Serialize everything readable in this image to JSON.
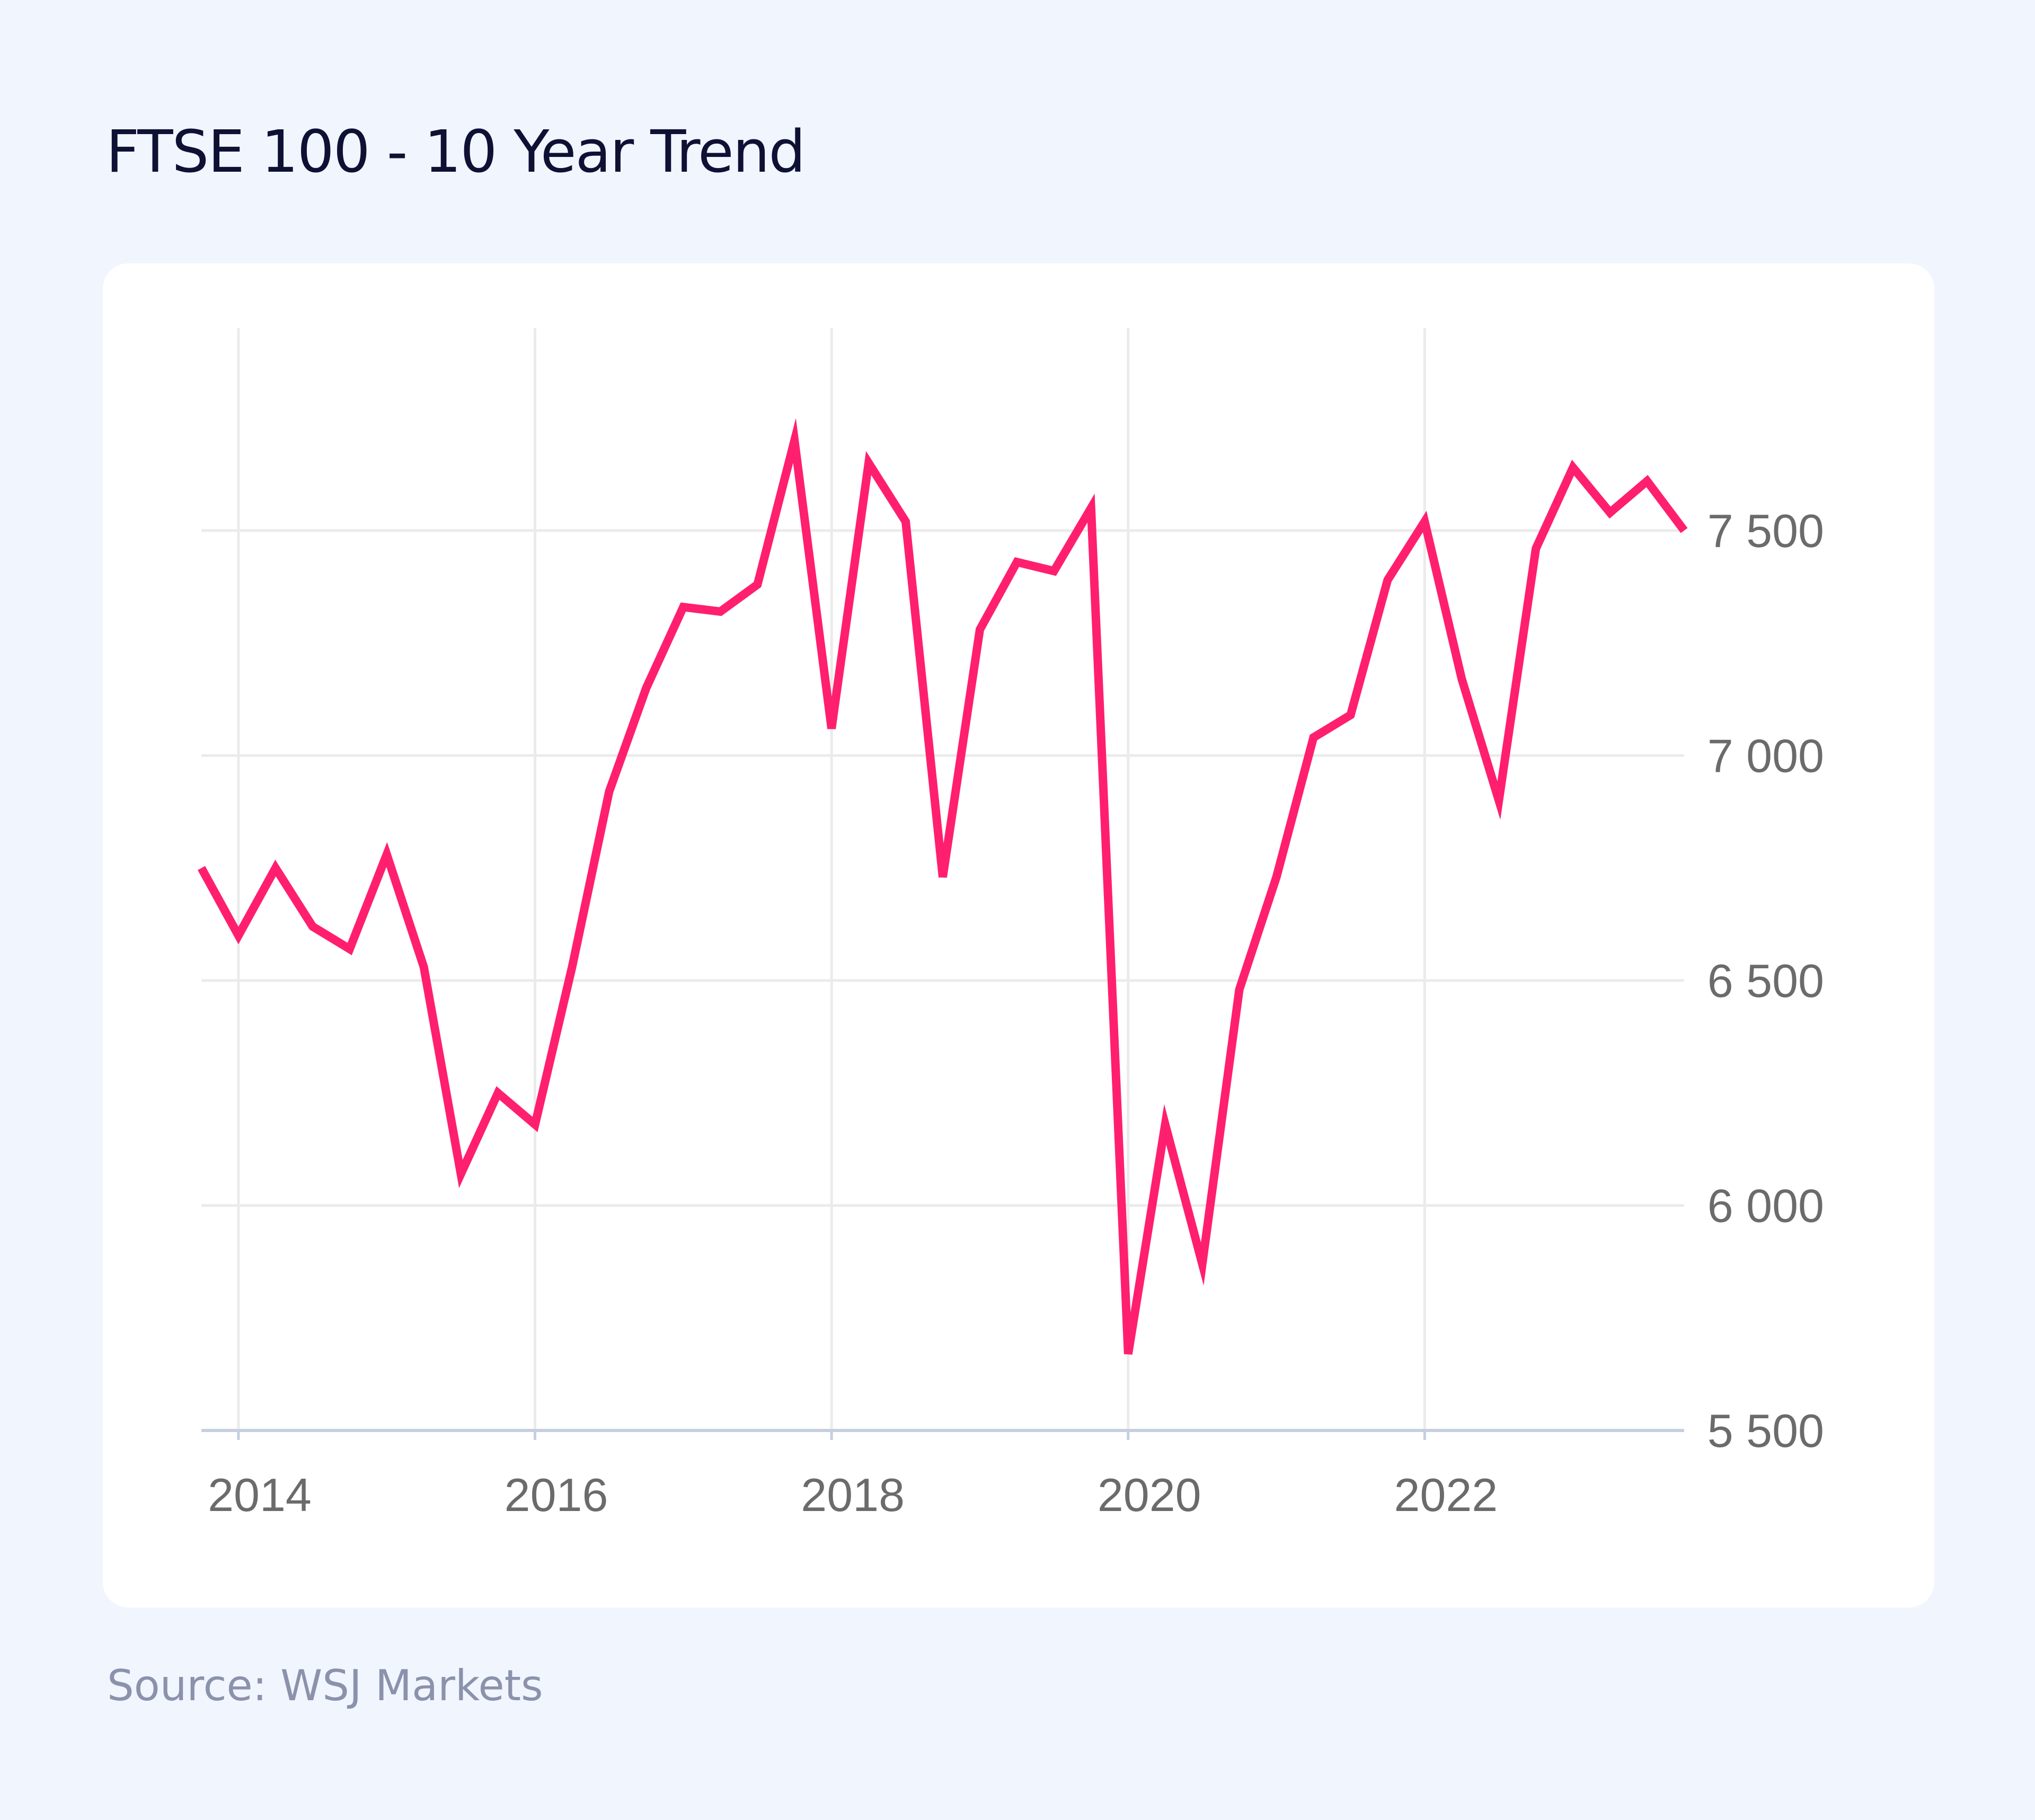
{
  "title": "FTSE 100 - 10 Year Trend",
  "source": "Source: WSJ Markets",
  "colors": {
    "line": "#ff1f6e",
    "grid": "#ebebeb",
    "axis": "#c5cfe0",
    "tick_text": "#6b6b6b",
    "background": "#f1f5fe",
    "title": "#0e1133"
  },
  "chart_data": {
    "type": "line",
    "title": "FTSE 100 - 10 Year Trend",
    "xlabel": "",
    "ylabel": "",
    "x_ticks": [
      "2014",
      "2016",
      "2018",
      "2020",
      "2022"
    ],
    "y_ticks": [
      "5 500",
      "6 000",
      "6 500",
      "7 000",
      "7 500"
    ],
    "y_tick_values": [
      5500,
      6000,
      6500,
      7000,
      7500
    ],
    "ylim": [
      5500,
      7950
    ],
    "xlim": [
      2013.75,
      2023.75
    ],
    "grid": true,
    "y_axis_position": "right",
    "series": [
      {
        "x": [
          2013.75,
          2014.0,
          2014.25,
          2014.5,
          2014.75,
          2015.0,
          2015.25,
          2015.5,
          2015.75,
          2016.0,
          2016.25,
          2016.5,
          2016.75,
          2017.0,
          2017.25,
          2017.5,
          2017.75,
          2018.0,
          2018.25,
          2018.5,
          2018.75,
          2019.0,
          2019.25,
          2019.5,
          2019.75,
          2020.0,
          2020.25,
          2020.5,
          2020.75,
          2021.0,
          2021.25,
          2021.5,
          2021.75,
          2022.0,
          2022.25,
          2022.5,
          2022.75,
          2023.0,
          2023.25,
          2023.5,
          2023.75
        ],
        "y": [
          6750,
          6600,
          6750,
          6620,
          6570,
          6780,
          6530,
          6070,
          6250,
          6180,
          6530,
          6920,
          7150,
          7330,
          7320,
          7380,
          7700,
          7060,
          7650,
          7520,
          6730,
          7280,
          7430,
          7410,
          7550,
          5670,
          6180,
          5870,
          6480,
          6730,
          7040,
          7090,
          7390,
          7520,
          7170,
          6900,
          7460,
          7640,
          7540,
          7610,
          7500
        ]
      }
    ]
  }
}
